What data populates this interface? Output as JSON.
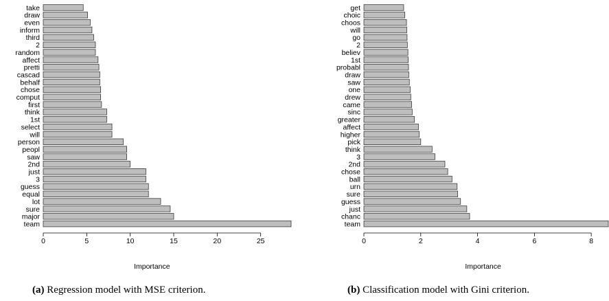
{
  "colors": {
    "bar_fill": "#bebebe",
    "bar_stroke": "#3a3a3a",
    "axis": "#000000"
  },
  "chart_data": [
    {
      "type": "bar",
      "orientation": "horizontal",
      "categories": [
        "take",
        "draw",
        "even",
        "inform",
        "third",
        "2",
        "random",
        "affect",
        "pretti",
        "cascad",
        "behalf",
        "chose",
        "comput",
        "first",
        "think",
        "1st",
        "select",
        "will",
        "person",
        "peopl",
        "saw",
        "2nd",
        "just",
        "3",
        "guess",
        "equal",
        "lot",
        "sure",
        "major",
        "team"
      ],
      "values": [
        4.6,
        5.1,
        5.4,
        5.6,
        5.8,
        6.0,
        6.0,
        6.3,
        6.4,
        6.5,
        6.5,
        6.6,
        6.6,
        6.7,
        7.3,
        7.3,
        7.9,
        7.9,
        9.2,
        9.6,
        9.6,
        10.0,
        11.8,
        11.8,
        12.1,
        12.1,
        13.5,
        14.6,
        15.0,
        28.5
      ],
      "xlim": [
        0,
        28.5
      ],
      "xticks": [
        0,
        5,
        10,
        15,
        20,
        25
      ],
      "xlabel": "Importance",
      "caption_label": "(a)",
      "caption_text": "Regression model with MSE criterion."
    },
    {
      "type": "bar",
      "orientation": "horizontal",
      "categories": [
        "get",
        "choic",
        "choos",
        "will",
        "go",
        "2",
        "believ",
        "1st",
        "probabl",
        "draw",
        "saw",
        "one",
        "drew",
        "came",
        "sinc",
        "greater",
        "affect",
        "higher",
        "pick",
        "think",
        "3",
        "2nd",
        "chose",
        "ball",
        "urn",
        "sure",
        "guess",
        "just",
        "chanc",
        "team"
      ],
      "values": [
        1.4,
        1.44,
        1.5,
        1.51,
        1.52,
        1.53,
        1.55,
        1.56,
        1.57,
        1.58,
        1.6,
        1.63,
        1.65,
        1.68,
        1.7,
        1.78,
        1.92,
        1.95,
        2.0,
        2.4,
        2.5,
        2.85,
        2.95,
        3.1,
        3.28,
        3.3,
        3.4,
        3.62,
        3.72,
        8.6
      ],
      "xlim": [
        0,
        8.6
      ],
      "xticks": [
        0,
        2,
        4,
        6,
        8
      ],
      "xlabel": "Importance",
      "caption_label": "(b)",
      "caption_text": "Classification model with Gini criterion."
    }
  ]
}
